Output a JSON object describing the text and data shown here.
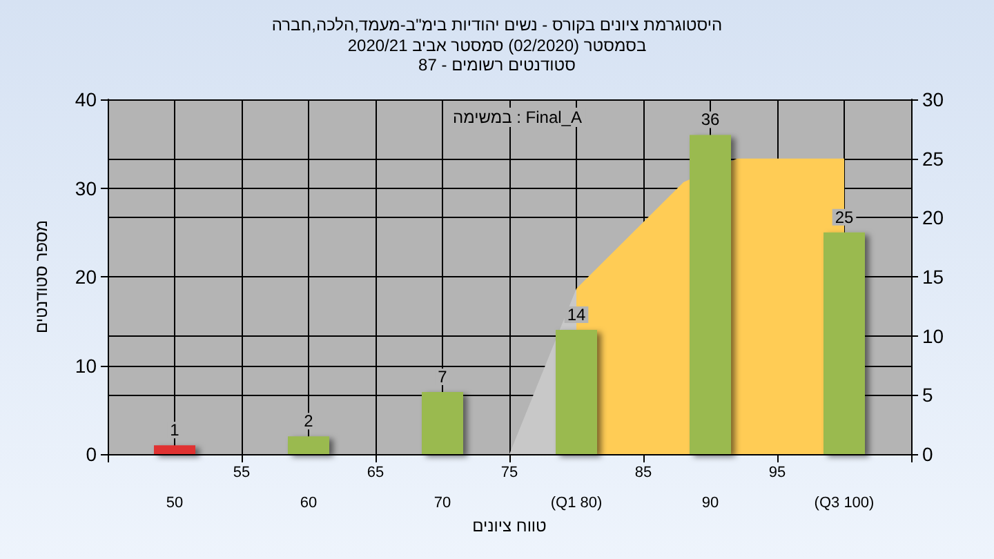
{
  "chart_data": {
    "type": "bar",
    "title": "היסטוגרמת ציונים בקורס - נשים יהודיות בימ\"ב-מעמד,הלכה,חברה",
    "subtitle": "בסמסטר (02/2020) סמסטר אביב 2020/21\nסטודנטים רשומים - 87",
    "xlabel": "טווח ציונים",
    "ylabel": "מספר סטודנטים",
    "annotations": [
      "במשימה : Final_A"
    ],
    "xlim": [
      45,
      105
    ],
    "xticks": [
      50,
      60,
      70,
      {
        "value": 80,
        "label": "(Q1 80)"
      },
      90,
      {
        "value": 100,
        "label": "(Q3 100)"
      }
    ],
    "x2lim": [
      45,
      105
    ],
    "x2ticks": [
      {
        "value": 45,
        "label": null
      },
      55,
      65,
      75,
      85,
      95,
      {
        "value": 105,
        "label": null
      }
    ],
    "ylim": [
      0,
      40
    ],
    "yticks": [
      0,
      10,
      20,
      30,
      40
    ],
    "y2lim": [
      0,
      30
    ],
    "y2ticks": [
      0,
      5,
      10,
      15,
      20,
      25,
      30
    ],
    "grid": true,
    "series": [
      {
        "type": "area",
        "axis": "y2",
        "color": "#c8c8c8",
        "x": [
          75,
          80
        ],
        "values": [
          0,
          14
        ]
      },
      {
        "type": "area",
        "axis": "y2",
        "color": "#ffcc55",
        "x": [
          80,
          88,
          92,
          100
        ],
        "values": [
          14,
          23,
          25,
          25
        ]
      },
      {
        "x": [
          50,
          60,
          70,
          80,
          90,
          100
        ],
        "values": [
          1,
          2,
          7,
          14,
          36,
          25
        ],
        "colors": [
          "#e03030",
          "#9aba50",
          "#9aba50",
          "#9aba50",
          "#9aba50",
          "#9aba50"
        ],
        "value_labels": [
          "1",
          "2",
          "7",
          "14",
          "36",
          "25"
        ]
      }
    ]
  }
}
